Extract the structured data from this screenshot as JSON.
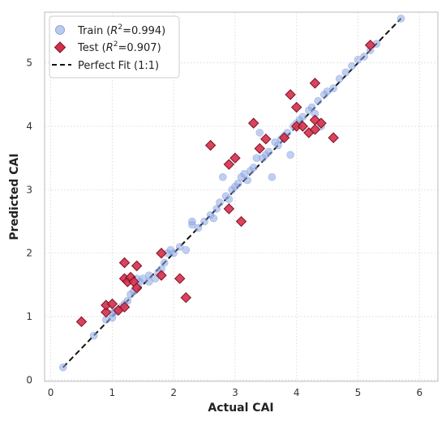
{
  "chart_data": {
    "type": "scatter",
    "title": "",
    "xlabel": "Actual CAI",
    "ylabel": "Predicted CAI",
    "xlim": [
      -0.1,
      6.3
    ],
    "ylim": [
      -0.02,
      5.8
    ],
    "xticks": [
      "0",
      "1",
      "2",
      "3",
      "4",
      "5",
      "6"
    ],
    "yticks": [
      "0",
      "1",
      "2",
      "3",
      "4",
      "5"
    ],
    "grid": true,
    "legend_position": "top-left",
    "series": [
      {
        "name": "Train",
        "name_suffix": "=0.994",
        "marker": "circle",
        "color": "#8da7e3",
        "points": [
          [
            0.2,
            0.2
          ],
          [
            0.7,
            0.7
          ],
          [
            0.9,
            0.95
          ],
          [
            1.0,
            0.98
          ],
          [
            1.0,
            1.05
          ],
          [
            1.05,
            1.08
          ],
          [
            1.1,
            1.1
          ],
          [
            1.15,
            1.15
          ],
          [
            1.2,
            1.2
          ],
          [
            1.25,
            1.25
          ],
          [
            1.3,
            1.35
          ],
          [
            1.35,
            1.4
          ],
          [
            1.4,
            1.5
          ],
          [
            1.4,
            1.6
          ],
          [
            1.45,
            1.55
          ],
          [
            1.5,
            1.6
          ],
          [
            1.6,
            1.55
          ],
          [
            1.6,
            1.65
          ],
          [
            1.7,
            1.6
          ],
          [
            1.75,
            1.7
          ],
          [
            1.8,
            1.75
          ],
          [
            1.85,
            1.85
          ],
          [
            1.9,
            2.0
          ],
          [
            1.95,
            2.05
          ],
          [
            2.0,
            2.0
          ],
          [
            2.1,
            2.1
          ],
          [
            2.2,
            2.05
          ],
          [
            2.3,
            2.45
          ],
          [
            2.3,
            2.5
          ],
          [
            2.4,
            2.4
          ],
          [
            2.5,
            2.5
          ],
          [
            2.6,
            2.6
          ],
          [
            2.65,
            2.55
          ],
          [
            2.7,
            2.7
          ],
          [
            2.75,
            2.8
          ],
          [
            2.8,
            3.2
          ],
          [
            2.85,
            2.9
          ],
          [
            2.9,
            2.85
          ],
          [
            2.95,
            3.0
          ],
          [
            3.0,
            3.05
          ],
          [
            3.05,
            3.1
          ],
          [
            3.1,
            3.2
          ],
          [
            3.15,
            3.25
          ],
          [
            3.2,
            3.15
          ],
          [
            3.25,
            3.3
          ],
          [
            3.3,
            3.35
          ],
          [
            3.35,
            3.5
          ],
          [
            3.4,
            3.9
          ],
          [
            3.45,
            3.5
          ],
          [
            3.5,
            3.55
          ],
          [
            3.55,
            3.6
          ],
          [
            3.6,
            3.2
          ],
          [
            3.65,
            3.75
          ],
          [
            3.7,
            3.7
          ],
          [
            3.75,
            3.8
          ],
          [
            3.8,
            3.85
          ],
          [
            3.85,
            3.9
          ],
          [
            3.9,
            3.55
          ],
          [
            3.95,
            4.0
          ],
          [
            4.0,
            4.05
          ],
          [
            4.05,
            4.1
          ],
          [
            4.1,
            4.15
          ],
          [
            4.2,
            4.25
          ],
          [
            4.25,
            4.3
          ],
          [
            4.3,
            4.2
          ],
          [
            4.35,
            4.4
          ],
          [
            4.4,
            4.0
          ],
          [
            4.45,
            4.5
          ],
          [
            4.5,
            4.55
          ],
          [
            4.6,
            4.6
          ],
          [
            4.7,
            4.75
          ],
          [
            4.8,
            4.85
          ],
          [
            4.9,
            4.95
          ],
          [
            5.0,
            5.05
          ],
          [
            5.1,
            5.1
          ],
          [
            5.2,
            5.2
          ],
          [
            5.3,
            5.3
          ],
          [
            5.7,
            5.7
          ]
        ]
      },
      {
        "name": "Test",
        "name_suffix": "=0.907",
        "marker": "diamond",
        "color": "#d62f4b",
        "points": [
          [
            0.5,
            0.92
          ],
          [
            0.9,
            1.07
          ],
          [
            0.9,
            1.18
          ],
          [
            1.0,
            1.2
          ],
          [
            1.1,
            1.1
          ],
          [
            1.2,
            1.15
          ],
          [
            1.2,
            1.6
          ],
          [
            1.2,
            1.85
          ],
          [
            1.25,
            1.55
          ],
          [
            1.3,
            1.62
          ],
          [
            1.35,
            1.55
          ],
          [
            1.4,
            1.45
          ],
          [
            1.4,
            1.8
          ],
          [
            1.8,
            1.65
          ],
          [
            1.8,
            2.0
          ],
          [
            2.1,
            1.6
          ],
          [
            2.2,
            1.3
          ],
          [
            2.6,
            3.7
          ],
          [
            2.9,
            3.4
          ],
          [
            2.9,
            2.7
          ],
          [
            3.0,
            3.5
          ],
          [
            3.1,
            2.5
          ],
          [
            3.3,
            4.05
          ],
          [
            3.4,
            3.65
          ],
          [
            3.5,
            3.8
          ],
          [
            3.8,
            3.82
          ],
          [
            3.9,
            4.5
          ],
          [
            4.0,
            4.0
          ],
          [
            4.0,
            4.3
          ],
          [
            4.1,
            4.0
          ],
          [
            4.2,
            3.9
          ],
          [
            4.3,
            4.1
          ],
          [
            4.3,
            4.68
          ],
          [
            4.3,
            3.95
          ],
          [
            4.4,
            4.05
          ],
          [
            4.6,
            3.82
          ],
          [
            5.2,
            5.28
          ]
        ]
      }
    ],
    "reference_line": {
      "name": "Perfect Fit (1:1)",
      "from": [
        0.2,
        0.2
      ],
      "to": [
        5.7,
        5.7
      ],
      "style": "dashed",
      "color": "#111111"
    }
  }
}
